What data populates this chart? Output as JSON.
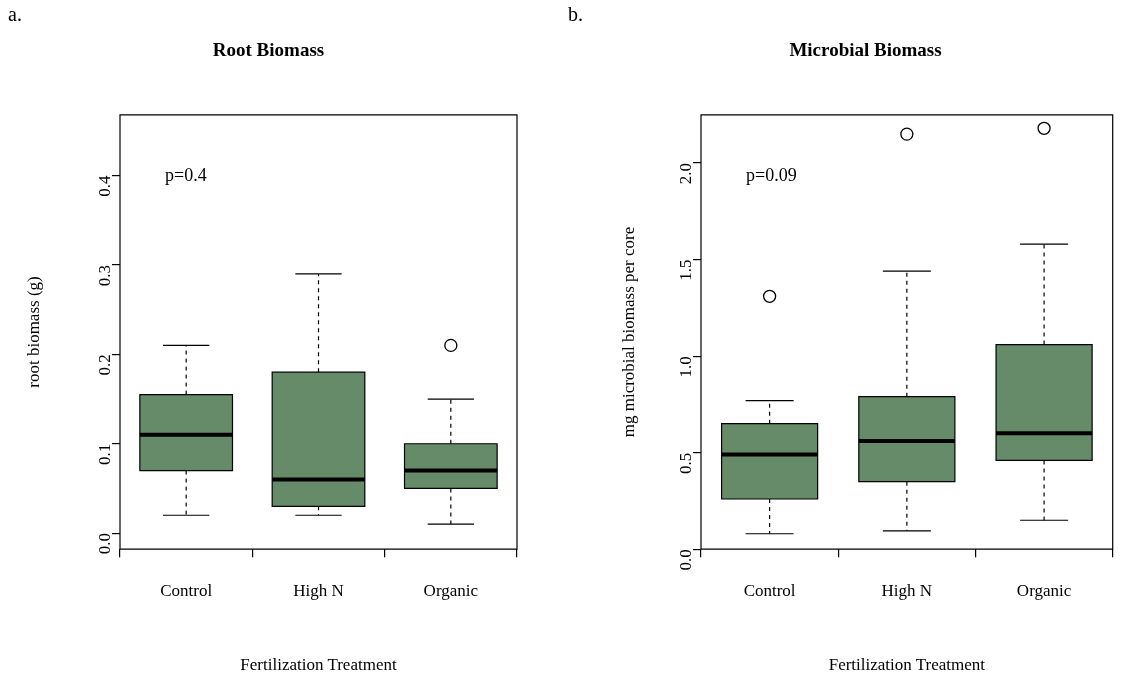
{
  "chart_data": [
    {
      "type": "box",
      "title": "Root Biomass",
      "xlabel": "Fertilization Treatment",
      "ylabel": "root biomass (g)",
      "annotations": [
        "a.",
        "p=0.4"
      ],
      "categories": [
        "Control",
        "High N",
        "Organic"
      ],
      "color": "#668b68",
      "boxes": [
        {
          "low": 0.02,
          "q1": 0.07,
          "median": 0.11,
          "q3": 0.155,
          "high": 0.21
        },
        {
          "low": 0.02,
          "q1": 0.03,
          "median": 0.06,
          "q3": 0.18,
          "high": 0.29
        },
        {
          "low": 0.01,
          "q1": 0.05,
          "median": 0.07,
          "q3": 0.1,
          "high": 0.15,
          "outliers": [
            0.21
          ]
        }
      ],
      "ylim": [
        -0.018,
        0.468
      ],
      "yticks": [
        {
          "value": 0,
          "label": "0.0"
        },
        0.1,
        0.2,
        0.3,
        0.4
      ]
    },
    {
      "type": "box",
      "title": "Microbial Biomass",
      "xlabel": "Fertilization Treatment",
      "ylabel": "mg microbial biomass per core",
      "annotations": [
        "b.",
        "p=0.09"
      ],
      "categories": [
        "Control",
        "High N",
        "Organic"
      ],
      "color": "#668b68",
      "boxes": [
        {
          "low": 0.08,
          "q1": 0.26,
          "median": 0.49,
          "q3": 0.65,
          "high": 0.77,
          "outliers": [
            1.31
          ]
        },
        {
          "low": 0.095,
          "q1": 0.35,
          "median": 0.56,
          "q3": 0.79,
          "high": 1.44,
          "outliers": [
            2.15
          ]
        },
        {
          "low": 0.15,
          "q1": 0.46,
          "median": 0.6,
          "q3": 1.06,
          "high": 1.58,
          "outliers": [
            2.18
          ]
        }
      ],
      "ylim": [
        0,
        2.25
      ],
      "yticks": [
        {
          "value": 0,
          "label": "0.0"
        },
        0.5,
        {
          "value": 1,
          "label": "1.0"
        },
        1.5,
        {
          "value": 2,
          "label": "2.0"
        }
      ]
    }
  ]
}
